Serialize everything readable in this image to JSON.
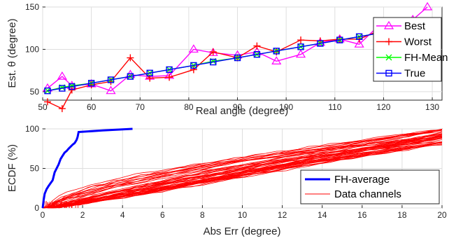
{
  "chart_data": [
    {
      "type": "line",
      "xlabel": "Real angle (degree)",
      "ylabel": "Est. θ (degree)",
      "xlim": [
        50,
        132
      ],
      "ylim": [
        40,
        150
      ],
      "xticks": [
        50,
        60,
        70,
        80,
        90,
        100,
        110,
        120,
        130
      ],
      "yticks": [
        50,
        100,
        150
      ],
      "legend_position": "bottom-right",
      "x": [
        51,
        54,
        56,
        60,
        64,
        68,
        72,
        76,
        81,
        85,
        90,
        94,
        98,
        103,
        107,
        111,
        115,
        119,
        122,
        126,
        129
      ],
      "series": [
        {
          "name": "Best",
          "color": "#ff00ff",
          "marker": "triangle",
          "values": [
            54,
            68,
            57,
            59,
            51,
            70,
            68,
            69,
            100,
            96,
            93,
            97,
            86,
            94,
            108,
            112,
            106,
            128,
            124,
            135,
            150
          ]
        },
        {
          "name": "Worst",
          "color": "#ff0000",
          "marker": "plus",
          "values": [
            38,
            30,
            52,
            58,
            62,
            90,
            66,
            67,
            76,
            97,
            90,
            104,
            97,
            111,
            110,
            112,
            112,
            122,
            131,
            119,
            128
          ]
        },
        {
          "name": "FH-Mean",
          "color": "#00ff00",
          "marker": "x",
          "values": [
            51,
            55,
            57,
            60,
            64,
            68,
            72,
            76,
            81,
            86,
            90,
            94,
            98,
            103,
            107,
            111,
            115,
            119,
            122,
            126,
            129
          ]
        },
        {
          "name": "True",
          "color": "#0000ff",
          "marker": "square",
          "values": [
            51,
            54,
            56,
            60,
            64,
            68,
            72,
            76,
            81,
            85,
            90,
            94,
            98,
            103,
            107,
            111,
            115,
            119,
            122,
            126,
            129
          ]
        }
      ]
    },
    {
      "type": "line",
      "xlabel": "Abs Err (degree)",
      "ylabel": "ECDF (%)",
      "xlim": [
        0,
        20
      ],
      "ylim": [
        0,
        100
      ],
      "xticks": [
        0,
        2,
        4,
        6,
        8,
        10,
        12,
        14,
        16,
        18,
        20
      ],
      "yticks": [
        0,
        50,
        100
      ],
      "legend_position": "bottom-right",
      "series": [
        {
          "name": "FH-average",
          "color": "#0000ff",
          "x": [
            0,
            0.05,
            0.1,
            0.2,
            0.3,
            0.5,
            0.6,
            0.8,
            0.9,
            1.0,
            1.1,
            1.2,
            1.3,
            1.5,
            1.6,
            1.7,
            1.75,
            1.8,
            3.0,
            4.5
          ],
          "values": [
            0,
            10,
            18,
            24,
            28,
            35,
            45,
            55,
            62,
            66,
            70,
            72,
            75,
            80,
            82,
            86,
            90,
            96,
            98,
            100
          ]
        },
        {
          "name": "Data channels",
          "color": "#ff0000",
          "count": 45
        }
      ]
    }
  ]
}
